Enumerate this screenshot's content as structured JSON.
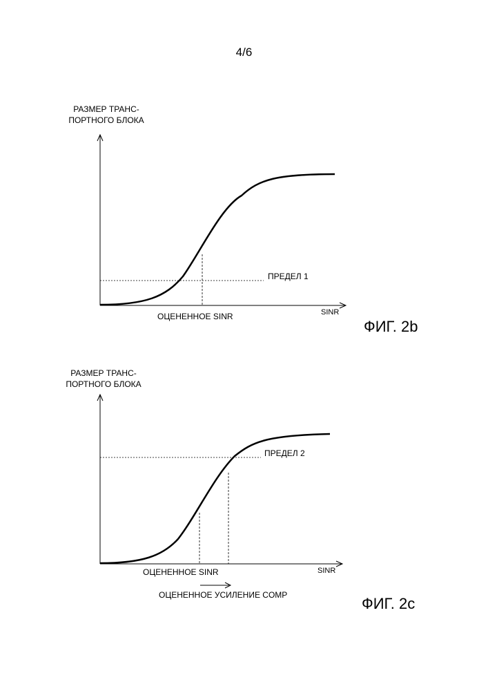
{
  "page": {
    "number": "4/6"
  },
  "figures": [
    {
      "id": "2b",
      "caption": "ФИГ. 2b",
      "y_axis_label_line1": "РАЗМЕР ТРАНС-",
      "y_axis_label_line2": "ПОРТНОГО БЛОКА",
      "x_axis_label": "SINR",
      "threshold_label": "ПРЕДЕЛ 1",
      "marker_label": "ОЦЕНЕННОЕ SINR"
    },
    {
      "id": "2c",
      "caption": "ФИГ. 2c",
      "y_axis_label_line1": "РАЗМЕР ТРАНС-",
      "y_axis_label_line2": "ПОРТНОГО БЛОКА",
      "x_axis_label": "SINR",
      "threshold_label": "ПРЕДЕЛ 2",
      "marker_label": "ОЦЕНЕННОЕ SINR",
      "shift_label": "ОЦЕНЕННОЕ УСИЛЕНИЕ COMP"
    }
  ]
}
